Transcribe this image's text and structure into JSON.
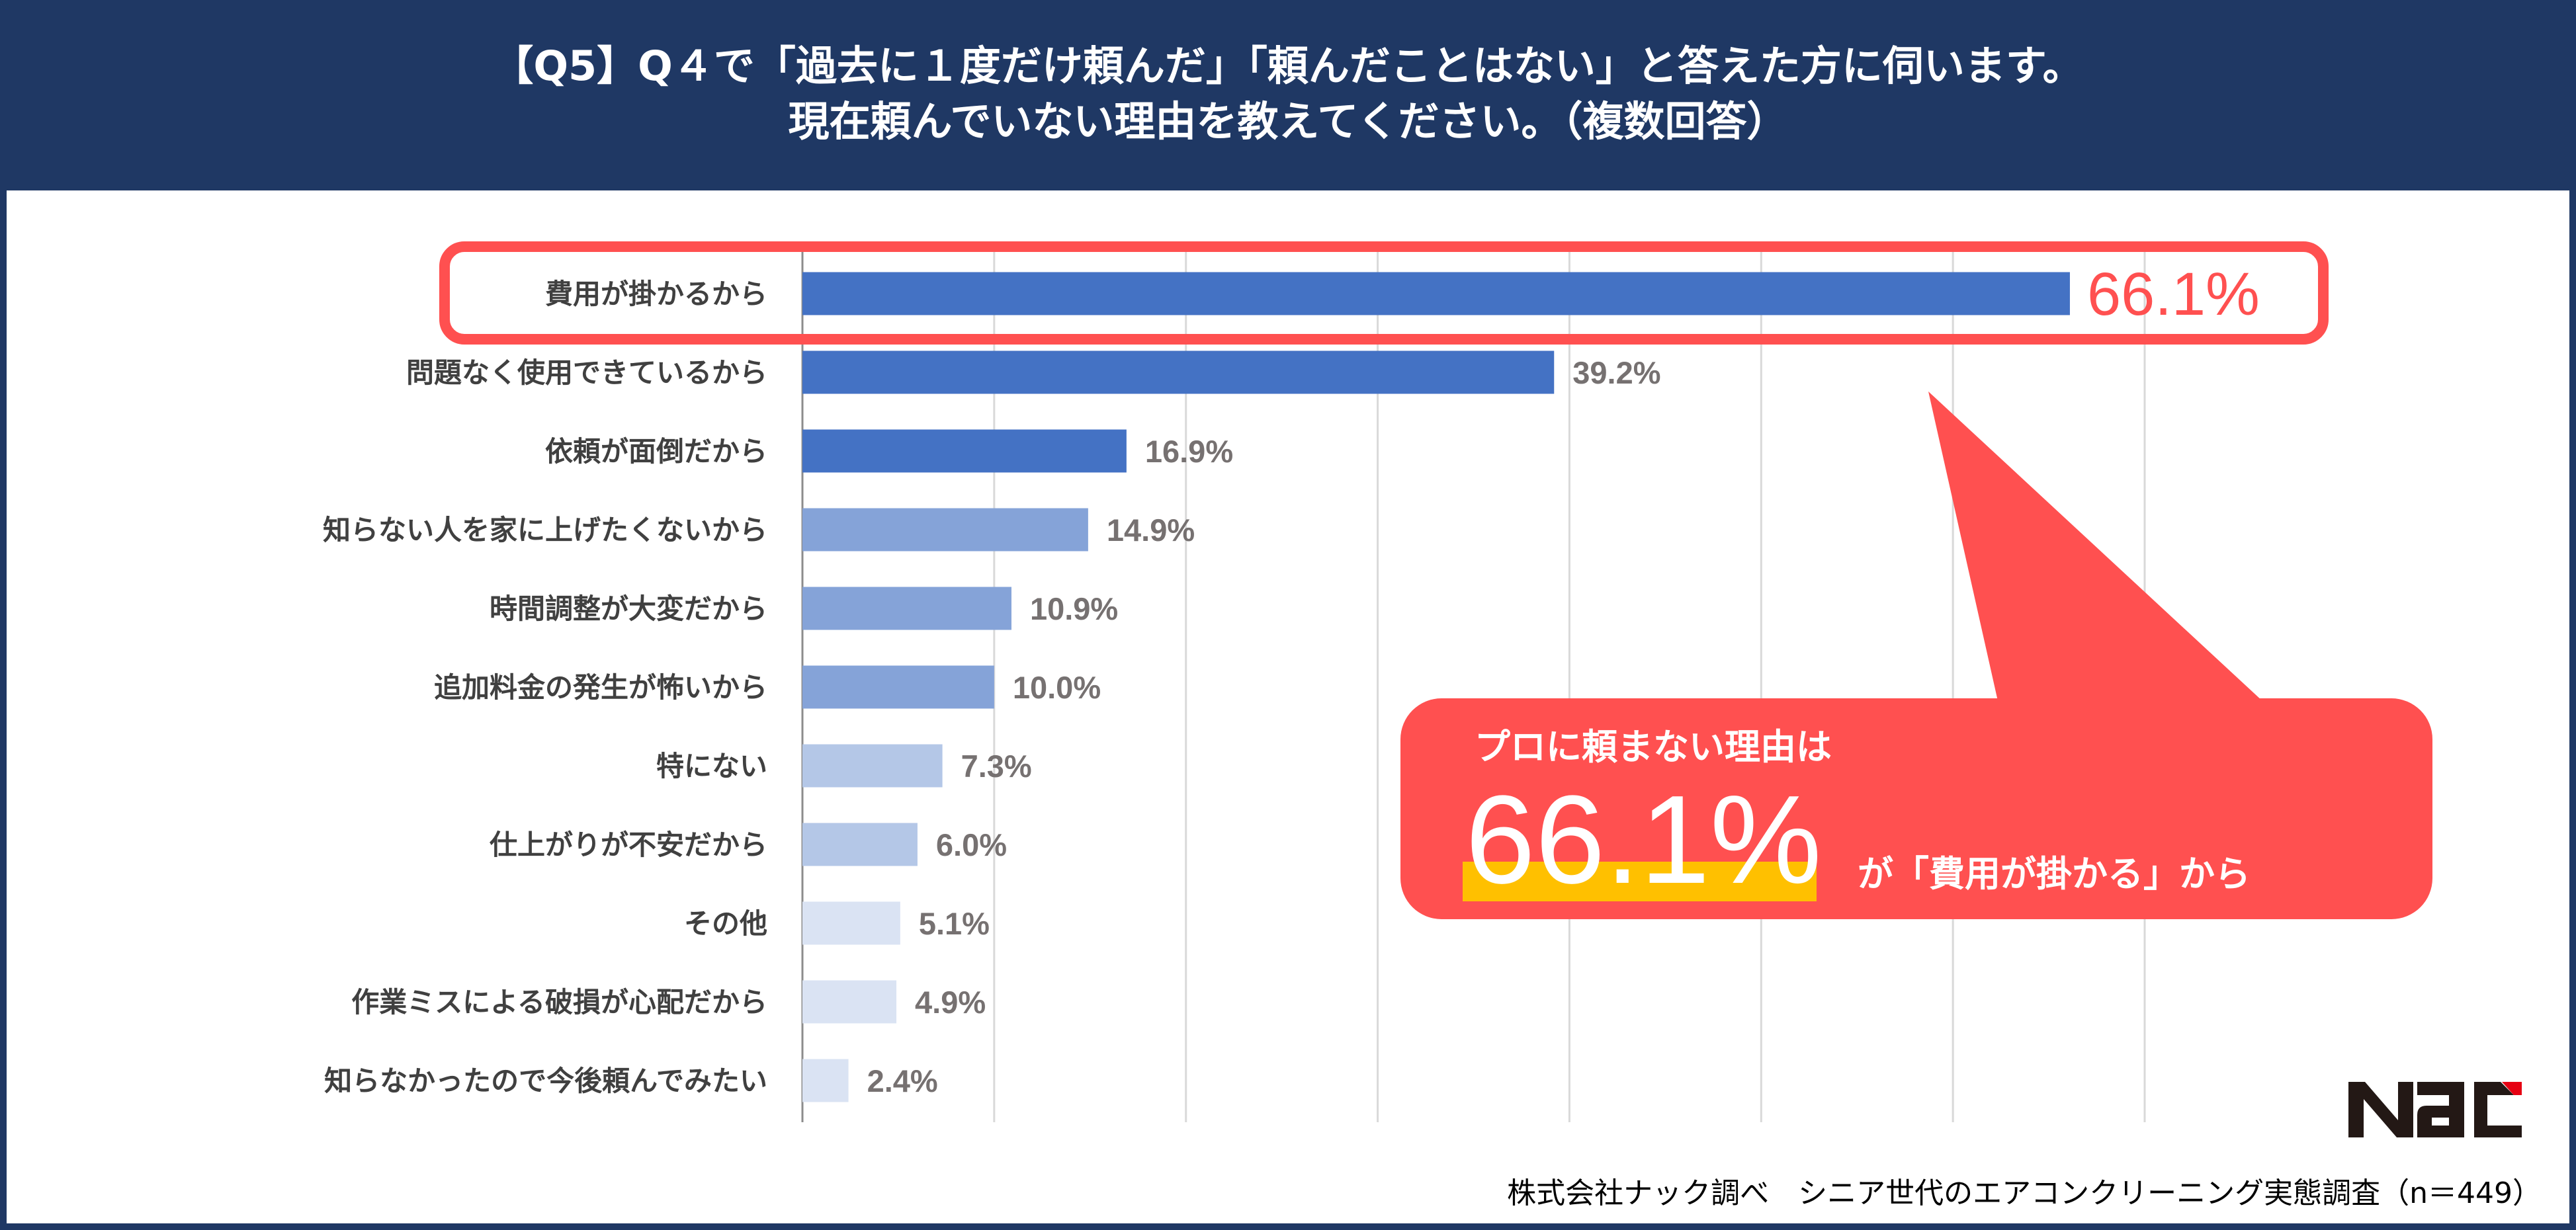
{
  "header": {
    "title_line1": "【Q5】Q４で「過去に１度だけ頼んだ」「頼んだことはない」と答えた方に伺います。",
    "title_line2": "現在頼んでいない理由を教えてください。（複数回答）"
  },
  "callout": {
    "line1": "プロに頼まない理由は",
    "big_value": "66.1%",
    "line2": "が「費用が掛かる」から",
    "highlight_color": "#ffc000",
    "bg_color": "#ff5050"
  },
  "highlight_label": "66.1%",
  "footer": "株式会社ナック調べ　シニア世代のエアコンクリーニング実態調査（n＝449）",
  "logo_text": "Nac",
  "chart_data": {
    "type": "bar",
    "orientation": "horizontal",
    "categories": [
      "費用が掛かるから",
      "問題なく使用できているから",
      "依頼が面倒だから",
      "知らない人を家に上げたくないから",
      "時間調整が大変だから",
      "追加料金の発生が怖いから",
      "特にない",
      "仕上がりが不安だから",
      "その他",
      "作業ミスによる破損が心配だから",
      "知らなかったので今後頼んでみたい"
    ],
    "values": [
      66.1,
      39.2,
      16.9,
      14.9,
      10.9,
      10.0,
      7.3,
      6.0,
      5.1,
      4.9,
      2.4
    ],
    "labels": [
      "66.1%",
      "39.2%",
      "16.9%",
      "14.9%",
      "10.9%",
      "10.0%",
      "7.3%",
      "6.0%",
      "5.1%",
      "4.9%",
      "2.4%"
    ],
    "colors": [
      "#4472c4",
      "#4472c4",
      "#4472c4",
      "#85a3d8",
      "#85a3d8",
      "#85a3d8",
      "#b4c7e7",
      "#b4c7e7",
      "#dae3f3",
      "#dae3f3",
      "#dae3f3"
    ],
    "xlim": [
      0,
      70
    ],
    "grid": true,
    "unit": "%"
  }
}
